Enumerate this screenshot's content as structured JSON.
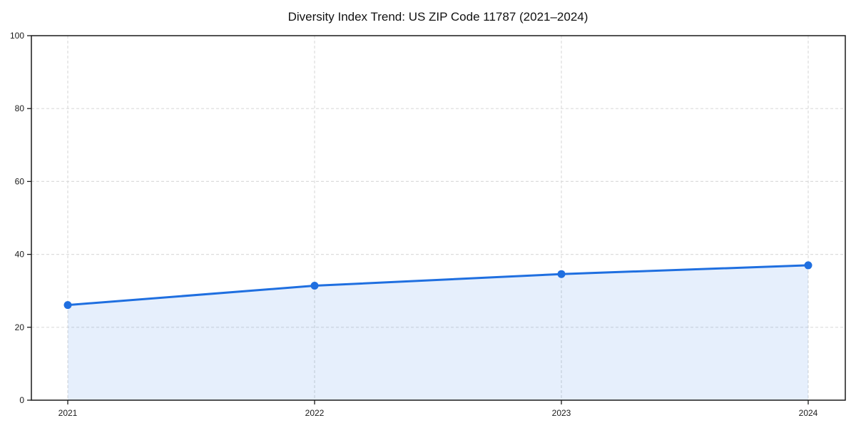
{
  "chart_data": {
    "type": "line",
    "title": "Diversity Index Trend: US ZIP Code 11787 (2021–2024)",
    "categories": [
      "2021",
      "2022",
      "2023",
      "2024"
    ],
    "series": [
      {
        "name": "Diversity Index",
        "values": [
          26.1,
          31.4,
          34.6,
          37.0
        ]
      }
    ],
    "xlabel": "",
    "ylabel": "",
    "ylim": [
      0,
      100
    ],
    "yticks": [
      0,
      20,
      40,
      60,
      80,
      100
    ],
    "grid": true,
    "grid_style": "dashed",
    "legend_position": "none",
    "area_fill": true,
    "colors": {
      "line": "#1f6fe0",
      "marker": "#1f6fe0",
      "area_fill": "#1f6fe0",
      "area_fill_opacity": 0.11,
      "gridline": "#dcdcdc",
      "spine": "#1a1a1a",
      "background": "#ffffff"
    }
  }
}
